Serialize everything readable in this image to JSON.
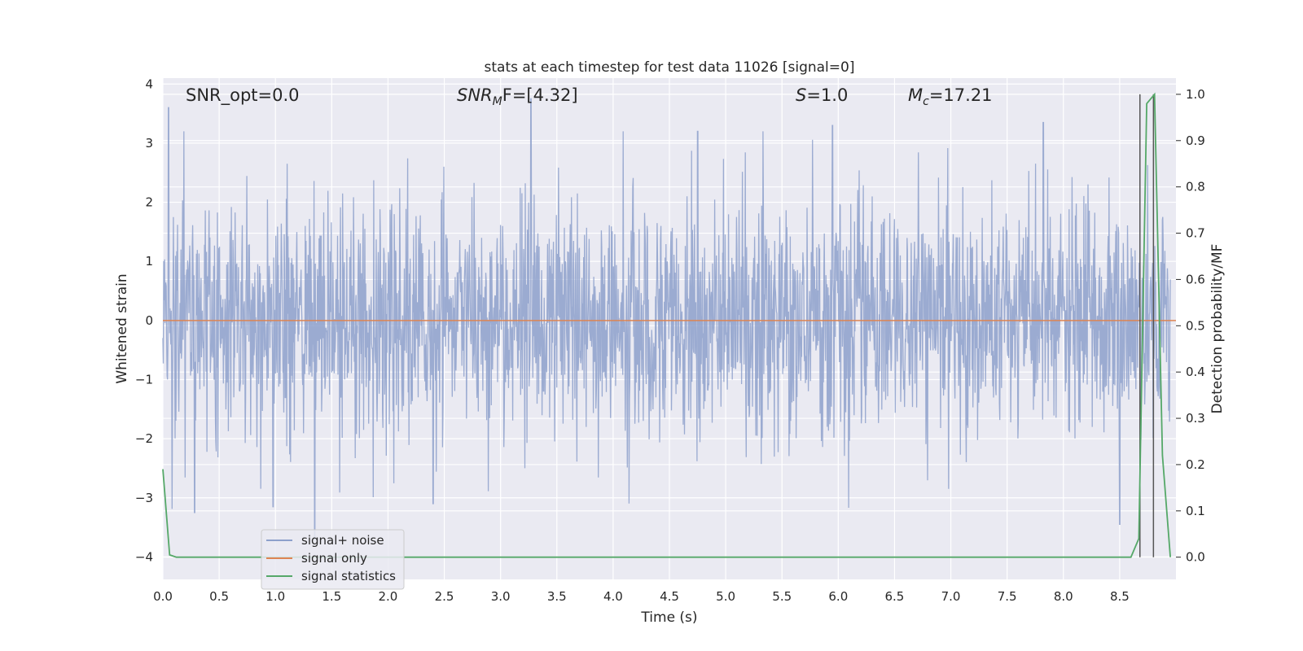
{
  "chart_data": {
    "type": "line",
    "title": "stats at each timestep for test data 11026 [signal=0]",
    "xlabel": "Time (s)",
    "ylabel_left": "Whitened strain",
    "ylabel_right": "Detection probability/MF",
    "xlim": [
      0.0,
      9.0
    ],
    "ylim_left": [
      -4.38,
      4.1
    ],
    "ylim_right": [
      -0.048,
      1.035
    ],
    "x_ticks": [
      "0.0",
      "0.5",
      "1.0",
      "1.5",
      "2.0",
      "2.5",
      "3.0",
      "3.5",
      "4.0",
      "4.5",
      "5.0",
      "5.5",
      "6.0",
      "6.5",
      "7.0",
      "7.5",
      "8.0",
      "8.5"
    ],
    "y_left_ticks": [
      "4",
      "3",
      "2",
      "1",
      "0",
      "−1",
      "−2",
      "−3",
      "−4"
    ],
    "y_right_ticks": [
      "1.0",
      "0.9",
      "0.8",
      "0.7",
      "0.6",
      "0.5",
      "0.4",
      "0.3",
      "0.2",
      "0.1",
      "0.0"
    ],
    "grid": true,
    "legend_position": "lower-left",
    "annotations": {
      "snr_opt": "SNR_opt=0.0",
      "snr_mf_main": "SNR",
      "snr_mf_sub": "M",
      "snr_mf_rest": "F=[4.32]",
      "s_main": "S",
      "s_rest": "=1.0",
      "mc_main": "M",
      "mc_sub": "c",
      "mc_rest": "=17.21"
    },
    "series": [
      {
        "name": "signal+ noise",
        "color": "#8da0cb",
        "axis": "left",
        "description_values": {
          "typical_range": [
            -2.0,
            2.0
          ],
          "peaks_max": [
            [
              0.05,
              3.6
            ],
            [
              3.27,
              3.75
            ],
            [
              7.82,
              3.35
            ],
            [
              5.95,
              3.3
            ],
            [
              4.75,
              3.2
            ]
          ],
          "peaks_min": [
            [
              1.35,
              -3.7
            ],
            [
              8.5,
              -3.45
            ],
            [
              2.4,
              -3.1
            ],
            [
              0.28,
              -3.25
            ],
            [
              0.98,
              -3.15
            ]
          ]
        }
      },
      {
        "name": "signal only",
        "color": "#dd8452",
        "axis": "left",
        "x": [
          0.0,
          9.0
        ],
        "y": [
          0.0,
          0.0
        ]
      },
      {
        "name": "signal statistics",
        "color": "#55a868",
        "axis": "right",
        "x": [
          0.0,
          0.06,
          0.12,
          1.0,
          2.0,
          3.0,
          4.0,
          5.0,
          6.0,
          7.0,
          8.0,
          8.6,
          8.67,
          8.74,
          8.81,
          8.88,
          8.95
        ],
        "y": [
          0.19,
          0.005,
          0.0,
          0.0,
          0.0,
          0.0,
          0.0,
          0.0,
          0.0,
          0.0,
          0.0,
          0.0,
          0.04,
          0.98,
          1.0,
          0.22,
          0.0
        ]
      }
    ],
    "vertical_lines": [
      {
        "x": 8.68,
        "color": "#555555"
      },
      {
        "x": 8.8,
        "color": "#555555"
      }
    ]
  }
}
